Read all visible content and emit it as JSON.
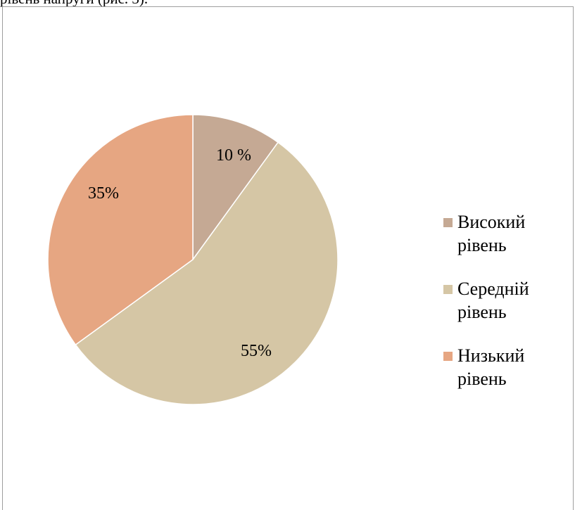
{
  "caption_fragment": "рівень напруги (рис. 3).",
  "colors": {
    "background": "#ffffff",
    "frame_border": "#9e9e9e",
    "slice_border": "#ffffff"
  },
  "chart_data": {
    "type": "pie",
    "title": "",
    "categories": [
      "Високий рівень",
      "Середній рівень",
      "Низький рівень"
    ],
    "values": [
      10,
      55,
      35
    ],
    "data_labels": [
      "10 %",
      "55%",
      "35%"
    ],
    "colors": [
      "#c5a994",
      "#d5c6a5",
      "#e6a682"
    ],
    "start_angle_deg": 0,
    "direction": "clockwise",
    "legend": {
      "position": "right"
    }
  }
}
